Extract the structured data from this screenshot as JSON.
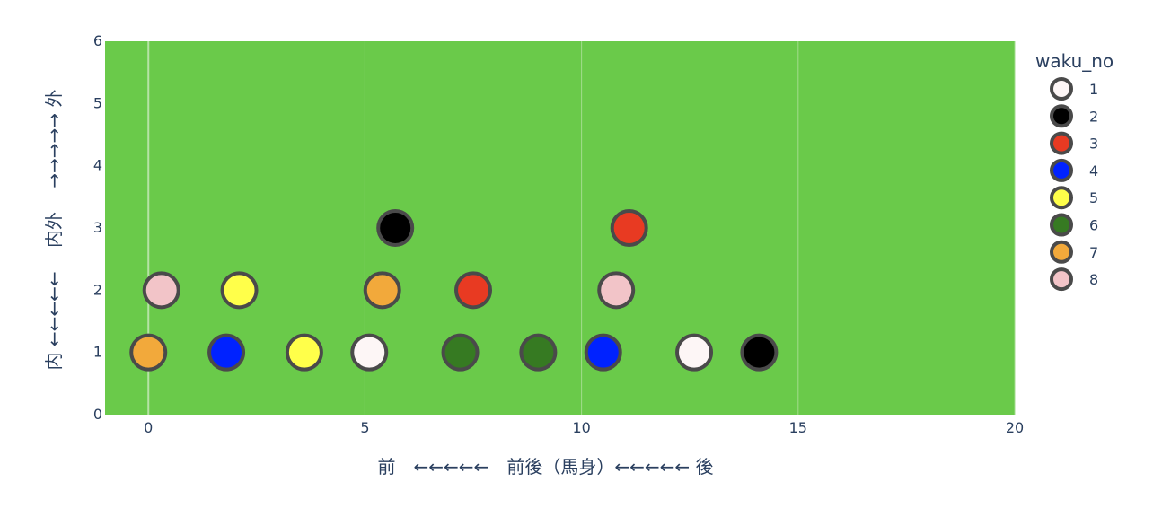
{
  "chart_data": {
    "type": "scatter",
    "title": "",
    "xlabel": "前　←←←←←　前後（馬身）←←←←← 後",
    "ylabel": "内 ←←←←←　 内外　 →→→→→ 外",
    "xlim": [
      -1,
      20
    ],
    "ylim": [
      0,
      6
    ],
    "x_ticks": [
      "0",
      "5",
      "10",
      "15",
      "20"
    ],
    "y_ticks": [
      "0",
      "1",
      "2",
      "3",
      "4",
      "5",
      "6"
    ],
    "grid": true,
    "background_color": "#6aca4a",
    "marker_outline_color": "#4a4a4a",
    "legend_title": "waku_no",
    "legend_position": "right",
    "series": [
      {
        "name": "1",
        "color": "#fdf6f6",
        "points": [
          {
            "x": 5.1,
            "y": 1
          },
          {
            "x": 12.6,
            "y": 1
          }
        ]
      },
      {
        "name": "2",
        "color": "#000000",
        "points": [
          {
            "x": 5.7,
            "y": 3
          },
          {
            "x": 14.1,
            "y": 1
          }
        ]
      },
      {
        "name": "3",
        "color": "#e83a22",
        "points": [
          {
            "x": 7.5,
            "y": 2
          },
          {
            "x": 11.1,
            "y": 3
          }
        ]
      },
      {
        "name": "4",
        "color": "#0022ff",
        "points": [
          {
            "x": 1.8,
            "y": 1
          },
          {
            "x": 10.5,
            "y": 1
          }
        ]
      },
      {
        "name": "5",
        "color": "#ffff4a",
        "points": [
          {
            "x": 2.1,
            "y": 2
          },
          {
            "x": 3.6,
            "y": 1
          }
        ]
      },
      {
        "name": "6",
        "color": "#367a22",
        "points": [
          {
            "x": 7.2,
            "y": 1
          },
          {
            "x": 9.0,
            "y": 1
          }
        ]
      },
      {
        "name": "7",
        "color": "#f2a93b",
        "points": [
          {
            "x": 0.0,
            "y": 1
          },
          {
            "x": 5.4,
            "y": 2
          }
        ]
      },
      {
        "name": "8",
        "color": "#f2c4c8",
        "points": [
          {
            "x": 0.3,
            "y": 2
          },
          {
            "x": 10.8,
            "y": 2
          }
        ]
      }
    ]
  }
}
